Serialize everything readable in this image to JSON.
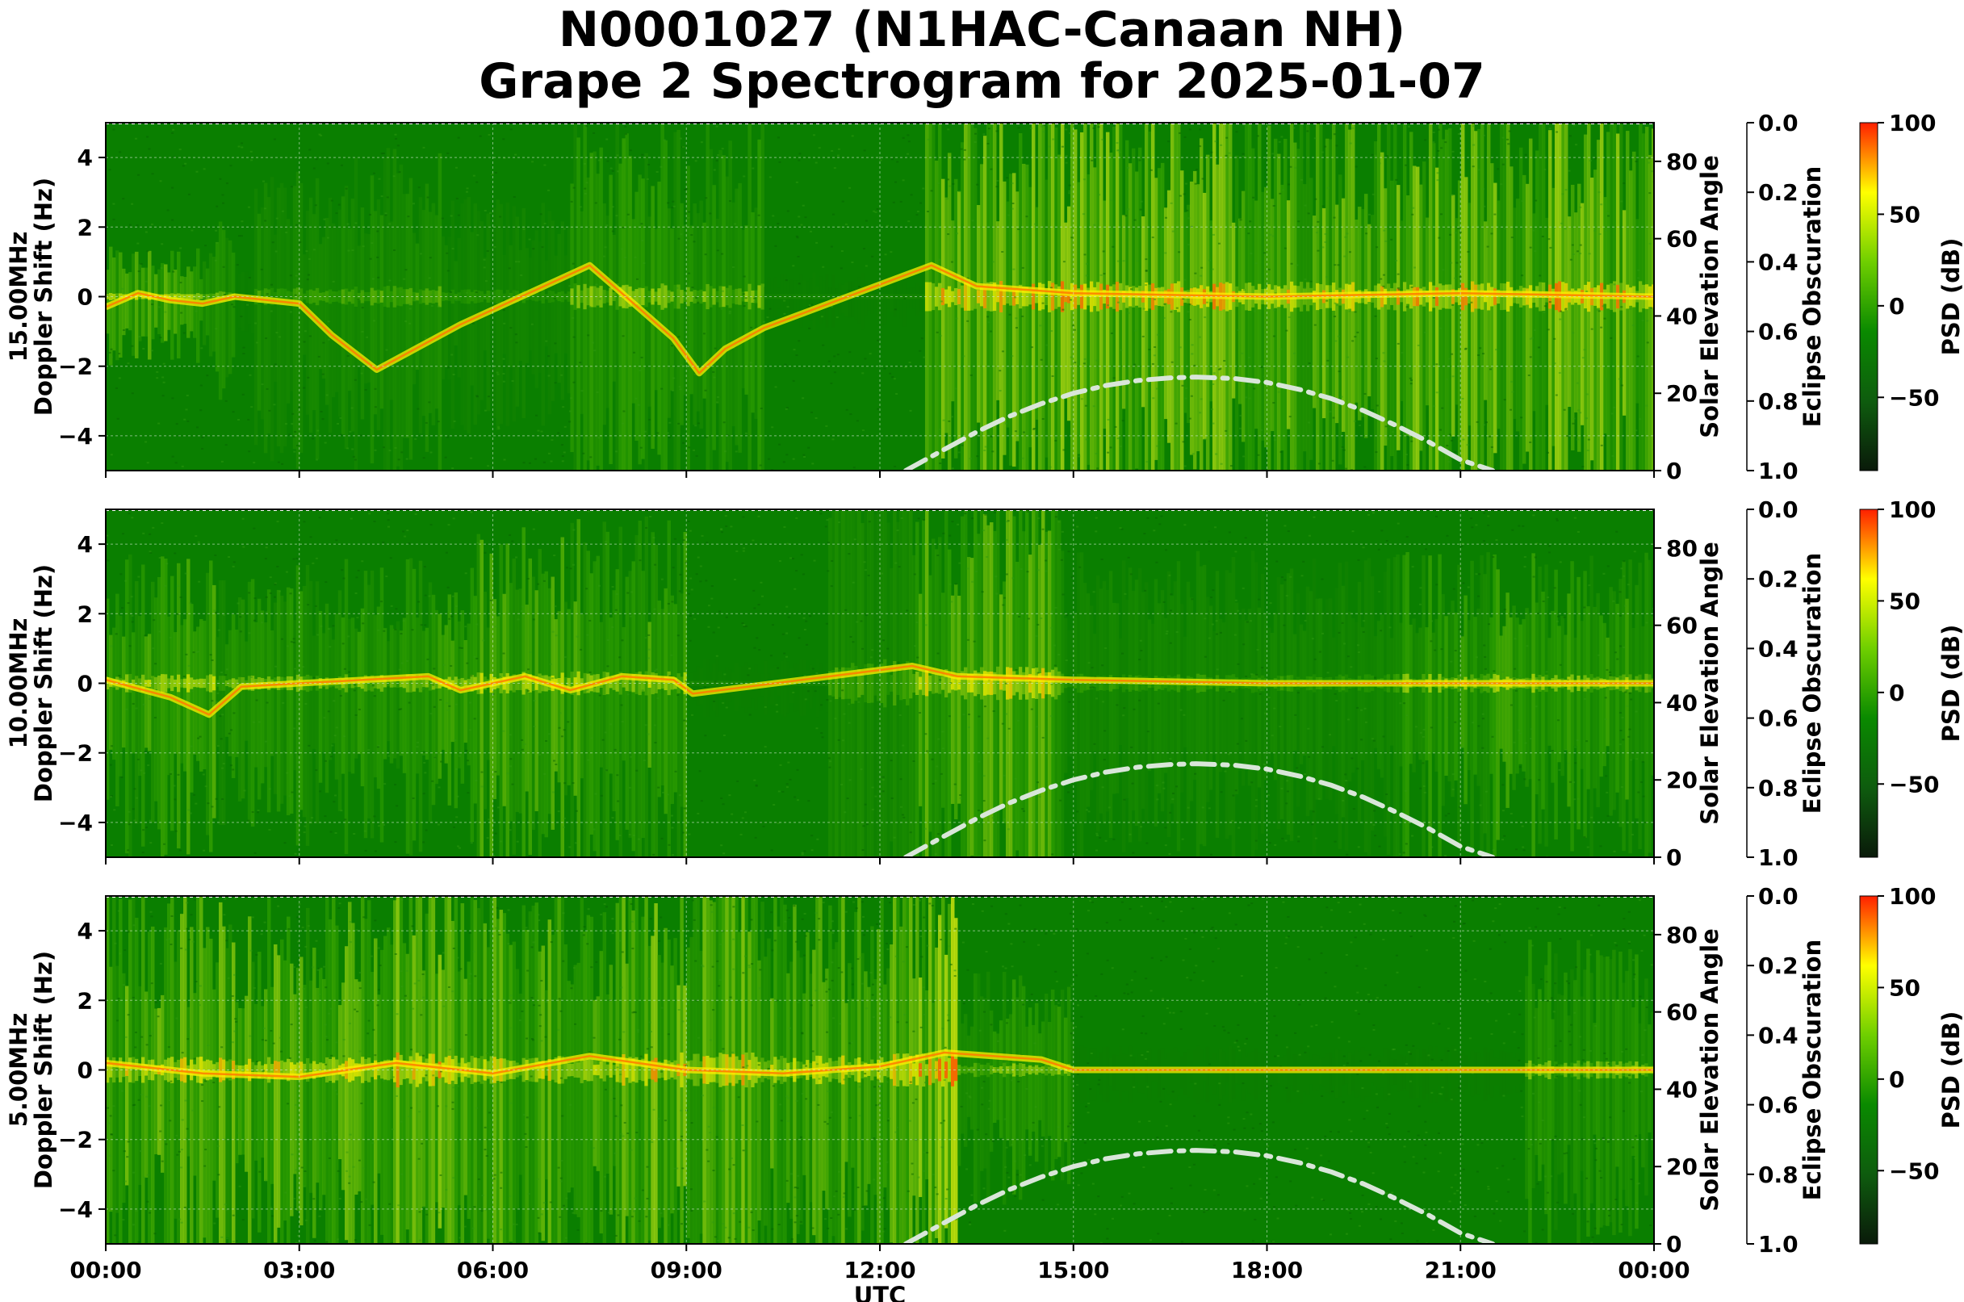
{
  "title": {
    "line1": "N0001027 (N1HAC-Canaan NH)",
    "line2": "Grape 2 Spectrogram for 2025-01-07"
  },
  "chart_data": {
    "type": "heatmap",
    "title": "N0001027 (N1HAC-Canaan NH) Grape 2 Spectrogram for 2025-01-07",
    "xlabel": "UTC",
    "x_ticks": [
      "00:00",
      "03:00",
      "06:00",
      "09:00",
      "12:00",
      "15:00",
      "18:00",
      "21:00",
      "00:00"
    ],
    "x_range_hours": [
      0,
      24
    ],
    "grid": true,
    "colormap": {
      "label": "PSD (dB)",
      "range": [
        -90,
        100
      ],
      "ticks": [
        100,
        50,
        0,
        -50
      ],
      "tick_labels": [
        "100",
        "50",
        "0",
        "−50"
      ],
      "colors": [
        "#0a1a0a",
        "#0e5c0e",
        "#0a8a00",
        "#6fcf00",
        "#ffff00",
        "#ff2000"
      ]
    },
    "right_axis": {
      "label": "Solar Elevation Angle",
      "range": [
        0,
        90
      ],
      "ticks": [
        0,
        20,
        40,
        60,
        80
      ],
      "tick_labels": [
        "0",
        "20",
        "40",
        "60",
        "80"
      ]
    },
    "eclipse_axis": {
      "label": "Eclipse Obscuration",
      "range": [
        0.0,
        1.0
      ],
      "inverted": true,
      "ticks": [
        0.0,
        0.2,
        0.4,
        0.6,
        0.8,
        1.0
      ],
      "tick_labels": [
        "0.0",
        "0.2",
        "0.4",
        "0.6",
        "0.8",
        "1.0"
      ]
    },
    "solar_elevation_curve": {
      "style": "dash-dot",
      "color": "#d9e6d9",
      "x_hours": [
        12.4,
        13.0,
        13.5,
        14.0,
        14.5,
        15.0,
        15.5,
        16.0,
        16.5,
        16.9,
        17.5,
        18.0,
        18.5,
        19.0,
        19.5,
        20.0,
        20.5,
        21.0,
        21.5
      ],
      "y_degrees": [
        0,
        5.5,
        10,
        14,
        17.3,
        20,
        22,
        23.3,
        24,
        24.2,
        23.8,
        22.8,
        21,
        18.6,
        15.5,
        11.7,
        7.5,
        2.8,
        0
      ]
    },
    "panels": [
      {
        "ylabel_line1": "15.00MHz",
        "ylabel_line2": "Doppler Shift (Hz)",
        "y_range": [
          -5,
          5
        ],
        "y_ticks": [
          4,
          2,
          0,
          -2,
          -4
        ],
        "y_tick_labels": [
          "4",
          "2",
          "0",
          "−2",
          "−4"
        ],
        "activity": [
          {
            "start": 0.0,
            "end": 1.5,
            "level": 0.58,
            "spread": 0.6
          },
          {
            "start": 1.5,
            "end": 2.0,
            "level": 0.42,
            "spread": 1.0
          },
          {
            "start": 2.0,
            "end": 2.3,
            "level": 0.1,
            "spread": 0.4
          },
          {
            "start": 2.3,
            "end": 3.8,
            "level": 0.3,
            "spread": 1.5
          },
          {
            "start": 3.8,
            "end": 5.2,
            "level": 0.35,
            "spread": 1.8
          },
          {
            "start": 5.2,
            "end": 7.2,
            "level": 0.22,
            "spread": 1.2
          },
          {
            "start": 7.2,
            "end": 10.2,
            "level": 0.45,
            "spread": 2.2
          },
          {
            "start": 10.2,
            "end": 12.7,
            "level": 0.05,
            "spread": 0.3
          },
          {
            "start": 12.7,
            "end": 24.0,
            "level": 0.68,
            "spread": 2.6
          }
        ],
        "trace": [
          {
            "x": 0.0,
            "y": -0.3
          },
          {
            "x": 0.5,
            "y": 0.1
          },
          {
            "x": 1.0,
            "y": -0.1
          },
          {
            "x": 1.5,
            "y": -0.2
          },
          {
            "x": 2.0,
            "y": 0.0
          },
          {
            "x": 3.0,
            "y": -0.2
          },
          {
            "x": 3.5,
            "y": -1.1
          },
          {
            "x": 4.2,
            "y": -2.1
          },
          {
            "x": 5.0,
            "y": -1.3
          },
          {
            "x": 5.5,
            "y": -0.8
          },
          {
            "x": 7.5,
            "y": 0.9
          },
          {
            "x": 8.0,
            "y": 0.1
          },
          {
            "x": 8.8,
            "y": -1.2
          },
          {
            "x": 9.2,
            "y": -2.2
          },
          {
            "x": 9.6,
            "y": -1.5
          },
          {
            "x": 10.2,
            "y": -0.9
          },
          {
            "x": 12.8,
            "y": 0.9
          },
          {
            "x": 13.5,
            "y": 0.3
          },
          {
            "x": 15.0,
            "y": 0.1
          },
          {
            "x": 18.0,
            "y": 0.0
          },
          {
            "x": 21.0,
            "y": 0.1
          },
          {
            "x": 24.0,
            "y": 0.0
          }
        ]
      },
      {
        "ylabel_line1": "10.00MHz",
        "ylabel_line2": "Doppler Shift (Hz)",
        "y_range": [
          -5,
          5
        ],
        "y_ticks": [
          4,
          2,
          0,
          -2,
          -4
        ],
        "y_tick_labels": [
          "4",
          "2",
          "0",
          "−2",
          "−4"
        ],
        "activity": [
          {
            "start": 0.0,
            "end": 1.7,
            "level": 0.55,
            "spread": 1.6
          },
          {
            "start": 1.7,
            "end": 2.9,
            "level": 0.42,
            "spread": 1.3
          },
          {
            "start": 2.9,
            "end": 5.1,
            "level": 0.45,
            "spread": 1.5
          },
          {
            "start": 5.1,
            "end": 5.7,
            "level": 0.5,
            "spread": 1.4
          },
          {
            "start": 5.7,
            "end": 9.0,
            "level": 0.55,
            "spread": 2.0
          },
          {
            "start": 9.0,
            "end": 11.2,
            "level": 0.08,
            "spread": 0.3
          },
          {
            "start": 11.2,
            "end": 12.5,
            "level": 0.3,
            "spread": 4.0
          },
          {
            "start": 12.5,
            "end": 14.8,
            "level": 0.62,
            "spread": 2.8
          },
          {
            "start": 14.8,
            "end": 20.0,
            "level": 0.25,
            "spread": 1.6
          },
          {
            "start": 20.0,
            "end": 24.0,
            "level": 0.5,
            "spread": 1.6
          }
        ],
        "trace": [
          {
            "x": 0.0,
            "y": 0.1
          },
          {
            "x": 1.0,
            "y": -0.4
          },
          {
            "x": 1.6,
            "y": -0.9
          },
          {
            "x": 2.1,
            "y": -0.1
          },
          {
            "x": 3.0,
            "y": 0.0
          },
          {
            "x": 4.0,
            "y": 0.1
          },
          {
            "x": 5.0,
            "y": 0.2
          },
          {
            "x": 5.5,
            "y": -0.2
          },
          {
            "x": 6.5,
            "y": 0.2
          },
          {
            "x": 7.2,
            "y": -0.2
          },
          {
            "x": 8.0,
            "y": 0.2
          },
          {
            "x": 8.8,
            "y": 0.1
          },
          {
            "x": 9.1,
            "y": -0.3
          },
          {
            "x": 12.5,
            "y": 0.5
          },
          {
            "x": 13.2,
            "y": 0.2
          },
          {
            "x": 15.0,
            "y": 0.1
          },
          {
            "x": 18.0,
            "y": 0.0
          },
          {
            "x": 24.0,
            "y": 0.0
          }
        ]
      },
      {
        "ylabel_line1": "5.00MHz",
        "ylabel_line2": "Doppler Shift (Hz)",
        "y_range": [
          -5,
          5
        ],
        "y_ticks": [
          4,
          2,
          0,
          -2,
          -4
        ],
        "y_tick_labels": [
          "4",
          "2",
          "0",
          "−2",
          "−4"
        ],
        "activity": [
          {
            "start": 0.0,
            "end": 4.5,
            "level": 0.62,
            "spread": 2.2
          },
          {
            "start": 4.5,
            "end": 5.2,
            "level": 0.68,
            "spread": 3.2
          },
          {
            "start": 5.2,
            "end": 8.0,
            "level": 0.62,
            "spread": 2.4
          },
          {
            "start": 8.0,
            "end": 10.2,
            "level": 0.66,
            "spread": 3.0
          },
          {
            "start": 10.2,
            "end": 12.2,
            "level": 0.58,
            "spread": 2.4
          },
          {
            "start": 12.2,
            "end": 13.2,
            "level": 0.78,
            "spread": 2.8
          },
          {
            "start": 13.2,
            "end": 15.0,
            "level": 0.45,
            "spread": 1.2
          },
          {
            "start": 15.0,
            "end": 22.0,
            "level": 0.05,
            "spread": 0.3
          },
          {
            "start": 22.0,
            "end": 24.0,
            "level": 0.42,
            "spread": 1.6
          }
        ],
        "trace": [
          {
            "x": 0.0,
            "y": 0.2
          },
          {
            "x": 1.5,
            "y": -0.1
          },
          {
            "x": 3.0,
            "y": -0.2
          },
          {
            "x": 4.5,
            "y": 0.2
          },
          {
            "x": 6.0,
            "y": -0.1
          },
          {
            "x": 7.5,
            "y": 0.4
          },
          {
            "x": 9.0,
            "y": 0.0
          },
          {
            "x": 10.5,
            "y": -0.1
          },
          {
            "x": 12.0,
            "y": 0.1
          },
          {
            "x": 13.0,
            "y": 0.5
          },
          {
            "x": 14.5,
            "y": 0.3
          },
          {
            "x": 15.0,
            "y": 0.0
          },
          {
            "x": 24.0,
            "y": 0.0
          }
        ]
      }
    ]
  }
}
